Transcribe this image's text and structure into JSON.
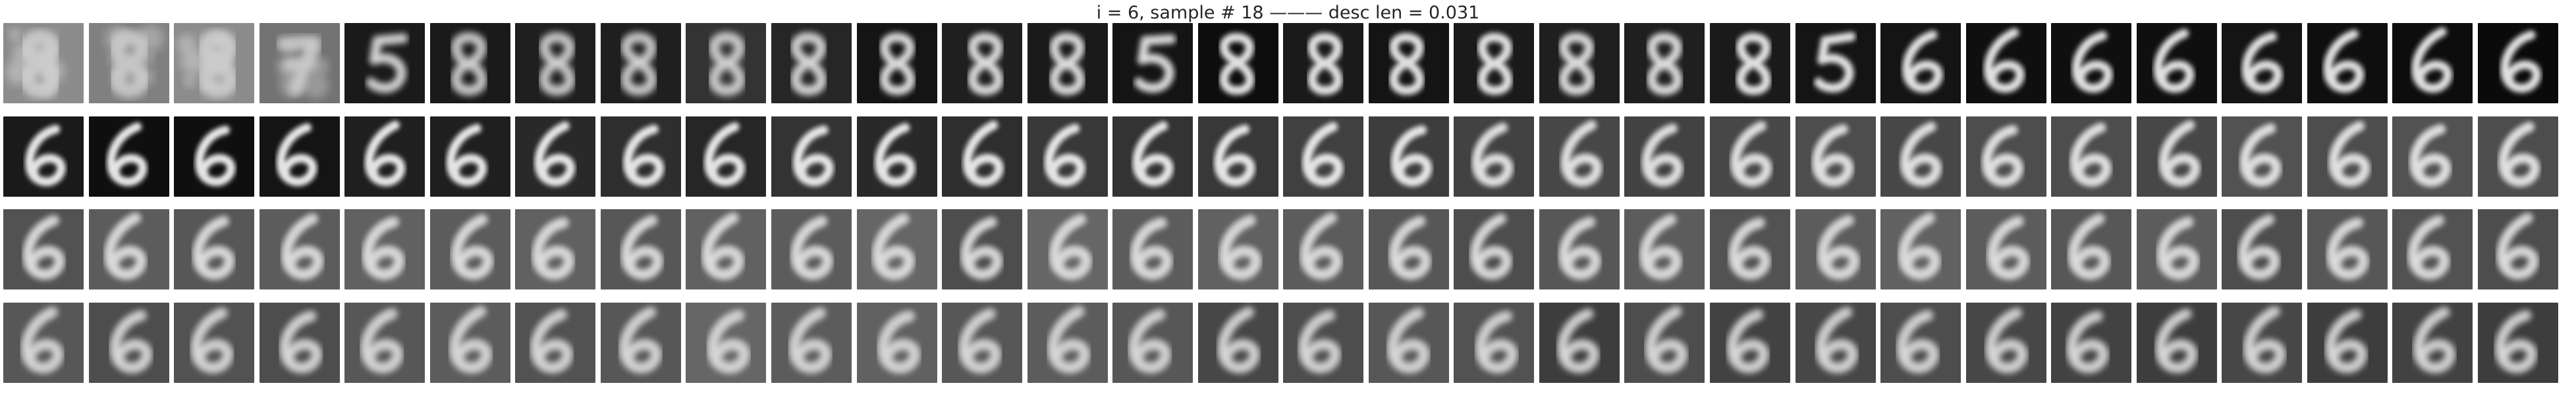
{
  "figure": {
    "title": "i = 6, sample # 18 ——— desc len = 0.031"
  },
  "grid": {
    "rows": 4,
    "cols": 30,
    "tile_content": [
      [
        "8",
        "8",
        "8",
        "7",
        "5",
        "8",
        "8",
        "8",
        "8",
        "8",
        "8",
        "8",
        "8",
        "5",
        "8",
        "8",
        "8",
        "8",
        "8",
        "8",
        "8",
        "5",
        "6",
        "6",
        "6",
        "6",
        "6",
        "6",
        "6",
        "6"
      ],
      [
        "6",
        "6",
        "6",
        "6",
        "6",
        "6",
        "6",
        "6",
        "6",
        "6",
        "6",
        "6",
        "6",
        "6",
        "6",
        "6",
        "6",
        "6",
        "6",
        "6",
        "6",
        "6",
        "6",
        "6",
        "6",
        "6",
        "6",
        "6",
        "6",
        "6"
      ],
      [
        "6",
        "6",
        "6",
        "6",
        "6",
        "6",
        "6",
        "6",
        "6",
        "6",
        "6",
        "6",
        "6",
        "6",
        "6",
        "6",
        "6",
        "6",
        "6",
        "6",
        "6",
        "6",
        "6",
        "6",
        "6",
        "6",
        "6",
        "6",
        "6",
        "6"
      ],
      [
        "6",
        "6",
        "6",
        "6",
        "6",
        "6",
        "6",
        "6",
        "6",
        "6",
        "6",
        "6",
        "6",
        "6",
        "6",
        "6",
        "6",
        "6",
        "6",
        "6",
        "6",
        "6",
        "6",
        "6",
        "6",
        "6",
        "6",
        "6",
        "6",
        "6"
      ]
    ],
    "row_background_levels": [
      [
        0.55,
        0.5,
        0.55,
        0.45,
        0.1,
        0.1,
        0.12,
        0.12,
        0.2,
        0.15,
        0.08,
        0.12,
        0.1,
        0.08,
        0.05,
        0.1,
        0.08,
        0.1,
        0.12,
        0.12,
        0.1,
        0.08,
        0.08,
        0.06,
        0.06,
        0.06,
        0.08,
        0.06,
        0.05,
        0.04
      ],
      [
        0.1,
        0.06,
        0.06,
        0.08,
        0.12,
        0.12,
        0.16,
        0.18,
        0.15,
        0.2,
        0.16,
        0.18,
        0.22,
        0.2,
        0.22,
        0.25,
        0.24,
        0.26,
        0.28,
        0.26,
        0.28,
        0.3,
        0.28,
        0.3,
        0.3,
        0.28,
        0.32,
        0.3,
        0.32,
        0.3
      ],
      [
        0.32,
        0.36,
        0.34,
        0.36,
        0.38,
        0.36,
        0.38,
        0.34,
        0.38,
        0.36,
        0.4,
        0.3,
        0.4,
        0.36,
        0.38,
        0.36,
        0.34,
        0.3,
        0.34,
        0.36,
        0.32,
        0.36,
        0.38,
        0.36,
        0.34,
        0.36,
        0.3,
        0.34,
        0.32,
        0.3
      ],
      [
        0.34,
        0.3,
        0.32,
        0.3,
        0.34,
        0.36,
        0.32,
        0.34,
        0.4,
        0.36,
        0.38,
        0.34,
        0.36,
        0.34,
        0.28,
        0.3,
        0.34,
        0.32,
        0.24,
        0.3,
        0.26,
        0.28,
        0.3,
        0.28,
        0.26,
        0.24,
        0.28,
        0.24,
        0.26,
        0.24
      ]
    ],
    "blur_levels": [
      [
        0.9,
        0.9,
        0.9,
        0.8,
        0.5,
        0.6,
        0.6,
        0.6,
        0.6,
        0.5,
        0.4,
        0.4,
        0.4,
        0.4,
        0.3,
        0.3,
        0.3,
        0.3,
        0.4,
        0.4,
        0.3,
        0.3,
        0.3,
        0.3,
        0.3,
        0.3,
        0.3,
        0.3,
        0.3,
        0.3
      ],
      [
        0.2,
        0.2,
        0.2,
        0.2,
        0.2,
        0.2,
        0.2,
        0.2,
        0.2,
        0.2,
        0.2,
        0.2,
        0.2,
        0.2,
        0.2,
        0.2,
        0.2,
        0.3,
        0.3,
        0.3,
        0.3,
        0.3,
        0.3,
        0.3,
        0.3,
        0.3,
        0.3,
        0.3,
        0.3,
        0.3
      ],
      [
        0.4,
        0.4,
        0.4,
        0.4,
        0.4,
        0.4,
        0.4,
        0.4,
        0.4,
        0.4,
        0.4,
        0.4,
        0.4,
        0.4,
        0.4,
        0.4,
        0.4,
        0.4,
        0.4,
        0.4,
        0.4,
        0.4,
        0.4,
        0.4,
        0.4,
        0.4,
        0.4,
        0.4,
        0.4,
        0.4
      ],
      [
        0.5,
        0.5,
        0.5,
        0.5,
        0.5,
        0.5,
        0.5,
        0.5,
        0.5,
        0.5,
        0.5,
        0.5,
        0.5,
        0.5,
        0.5,
        0.5,
        0.5,
        0.5,
        0.5,
        0.5,
        0.5,
        0.5,
        0.5,
        0.5,
        0.5,
        0.5,
        0.5,
        0.5,
        0.5,
        0.5
      ]
    ]
  }
}
